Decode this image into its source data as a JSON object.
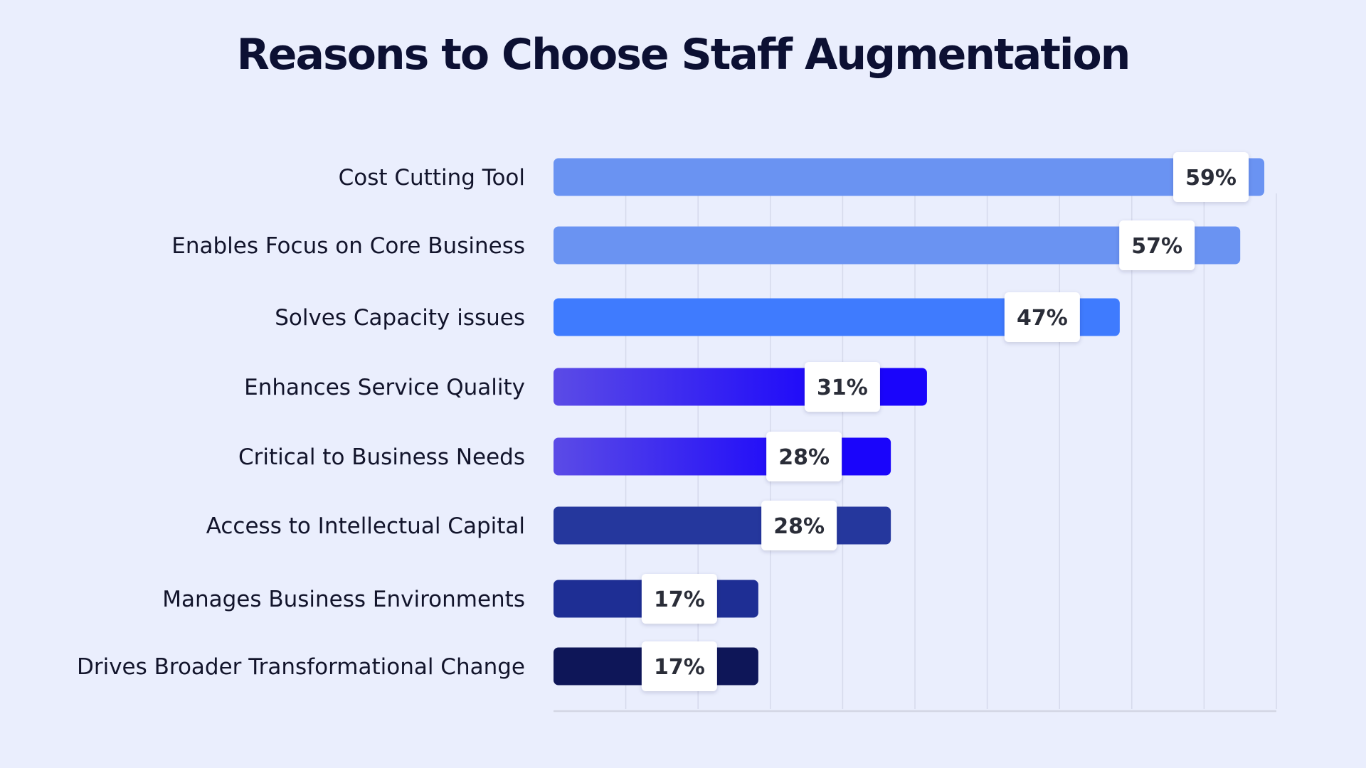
{
  "chart_data": {
    "type": "bar",
    "orientation": "horizontal",
    "title": "Reasons to Choose Staff Augmentation",
    "categories": [
      "Cost Cutting Tool",
      "Enables Focus on Core Business",
      "Solves Capacity issues",
      "Enhances Service Quality",
      "Critical to Business Needs",
      "Access to Intellectual Capital",
      "Manages Business Environments",
      "Drives Broader Transformational Change"
    ],
    "values": [
      59,
      57,
      47,
      31,
      28,
      28,
      17,
      17
    ],
    "value_labels": [
      "59%",
      "57%",
      "47%",
      "31%",
      "28%",
      "28%",
      "17%",
      "17%"
    ],
    "xlim": [
      0,
      60
    ],
    "grid": true,
    "legend": "none",
    "colors": [
      {
        "from": "#6A93F2",
        "to": "#6A93F2"
      },
      {
        "from": "#6A93F2",
        "to": "#6A93F2"
      },
      {
        "from": "#3F7BFE",
        "to": "#3F7BFE"
      },
      {
        "from": "#5B4BE6",
        "to": "#1A05FB"
      },
      {
        "from": "#5B4BE6",
        "to": "#1A05FB"
      },
      {
        "from": "#25379D",
        "to": "#25379D"
      },
      {
        "from": "#1E2E94",
        "to": "#1E2E94"
      },
      {
        "from": "#0E1658",
        "to": "#0E1658"
      }
    ]
  }
}
